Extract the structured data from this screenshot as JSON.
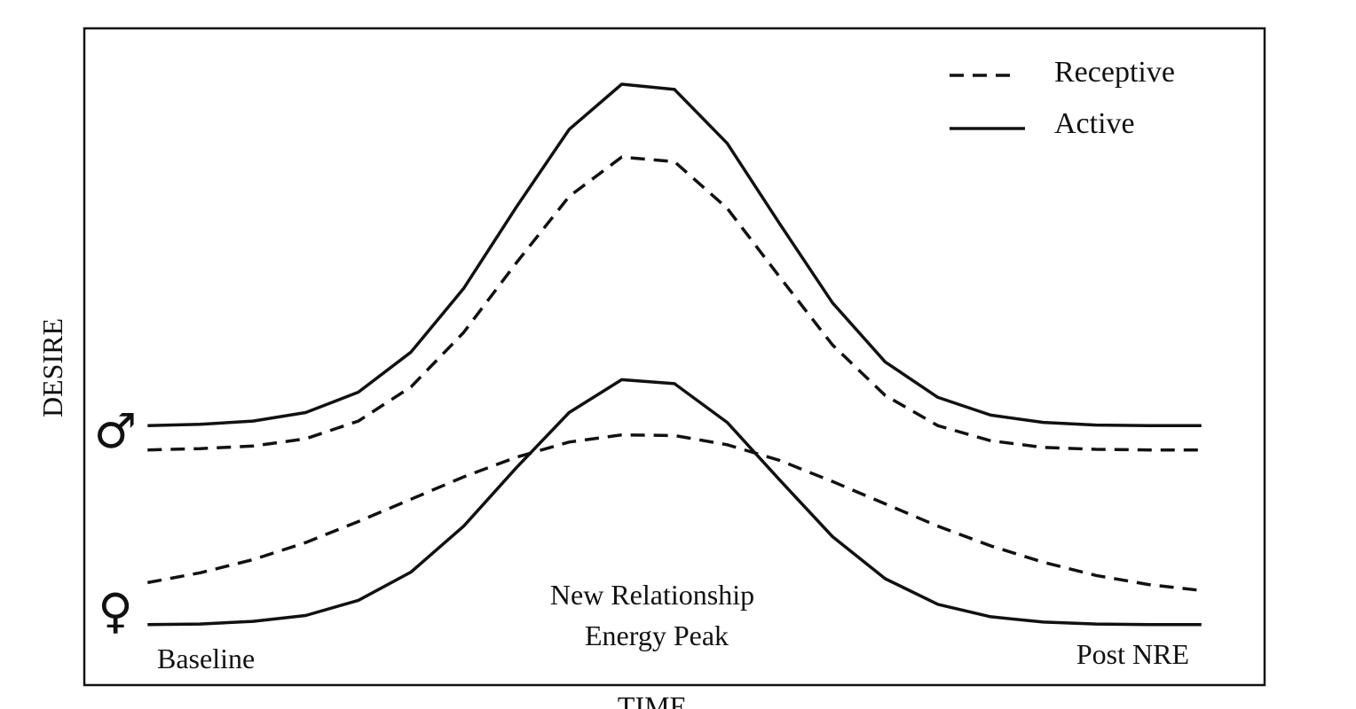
{
  "chart_data": {
    "type": "line",
    "x_label": "TIME",
    "y_label": "DESIRE",
    "legend": {
      "receptive": "Receptive",
      "active": "Active"
    },
    "annotations": {
      "peak": [
        "New Relationship",
        "Energy Peak"
      ],
      "start": "Baseline",
      "end": "Post NRE"
    },
    "x": [
      0,
      5,
      10,
      15,
      20,
      25,
      30,
      35,
      40,
      45,
      50,
      55,
      60,
      65,
      70,
      75,
      80,
      85,
      90,
      95,
      100
    ],
    "xlim": [
      -6,
      106
    ],
    "ylim": [
      0,
      100
    ],
    "groups": [
      {
        "label": "♂",
        "active": [
          39.5,
          39.7,
          40.2,
          41.5,
          44.6,
          50.7,
          60.4,
          72.8,
          84.6,
          91.5,
          90.7,
          82.5,
          70.2,
          58.2,
          49.2,
          43.8,
          41.1,
          40.0,
          39.6,
          39.5,
          39.5
        ],
        "receptive": [
          35.8,
          36.0,
          36.4,
          37.5,
          40.2,
          45.4,
          53.7,
          64.3,
          74.4,
          80.4,
          79.7,
          72.6,
          62.1,
          51.8,
          44.1,
          39.5,
          37.2,
          36.2,
          35.9,
          35.8,
          35.8
        ]
      },
      {
        "label": "♀",
        "active": [
          9.2,
          9.3,
          9.7,
          10.6,
          12.9,
          17.2,
          24.2,
          33.1,
          41.5,
          46.5,
          45.9,
          40.0,
          31.2,
          22.6,
          16.2,
          12.3,
          10.4,
          9.6,
          9.3,
          9.2,
          9.2
        ],
        "receptive": [
          15.6,
          17.1,
          19.1,
          21.7,
          24.9,
          28.3,
          31.7,
          34.7,
          37.0,
          38.1,
          38.0,
          36.6,
          34.2,
          31.0,
          27.6,
          24.2,
          21.2,
          18.7,
          16.7,
          15.3,
          14.4
        ]
      }
    ]
  }
}
